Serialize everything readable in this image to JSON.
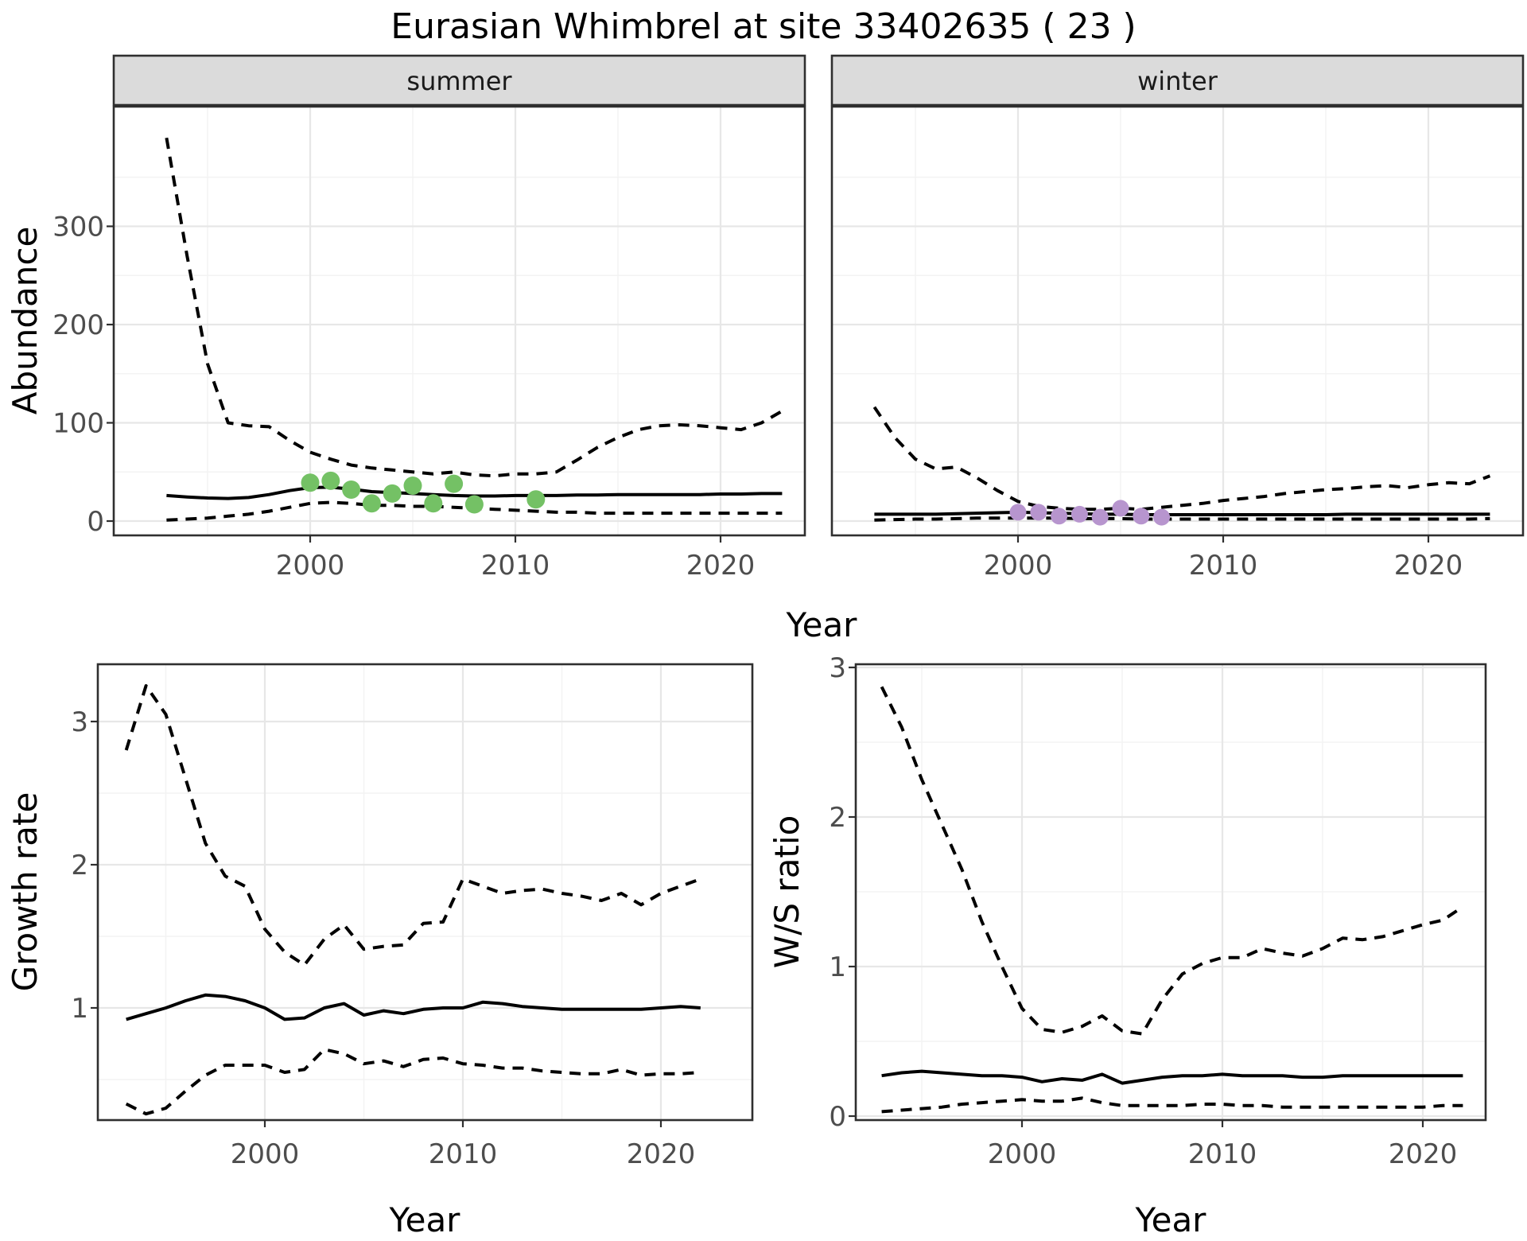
{
  "title": "Eurasian Whimbrel at site 33402635 ( 23 )",
  "colors": {
    "summer_points": "#74C165",
    "winter_points": "#B795CE",
    "line": "#000000",
    "strip_bg": "#DBDBDB",
    "panel_border": "#2F2F2F",
    "grid_major": "#E7E7E7",
    "grid_minor": "#F3F3F3",
    "tick_label": "#4D4D4D",
    "axis_title": "#000000",
    "strip_text": "#1A1A1A"
  },
  "chart_data": [
    {
      "id": "abundance-summer",
      "type": "line",
      "facet_label": "summer",
      "xlabel": "Year",
      "ylabel": "Abundance",
      "x": [
        1993,
        1994,
        1995,
        1996,
        1997,
        1998,
        1999,
        2000,
        2001,
        2002,
        2003,
        2004,
        2005,
        2006,
        2007,
        2008,
        2009,
        2010,
        2011,
        2012,
        2013,
        2014,
        2015,
        2016,
        2017,
        2018,
        2019,
        2020,
        2021,
        2022,
        2023
      ],
      "series": [
        {
          "name": "median",
          "style": "solid",
          "values": [
            26,
            24.5,
            23.5,
            23,
            24,
            27,
            31,
            34,
            34.5,
            32.5,
            30,
            29,
            28,
            27,
            26,
            25.5,
            25.5,
            26,
            26,
            26,
            26.5,
            26.5,
            27,
            27,
            27,
            27,
            27,
            27.5,
            27.5,
            28,
            28
          ]
        },
        {
          "name": "upper-95ci",
          "style": "dashed",
          "values": [
            390,
            270,
            160,
            100,
            97,
            96,
            82,
            70,
            63,
            57,
            54,
            52,
            50,
            48,
            50,
            47,
            46,
            48,
            48,
            50,
            62,
            75,
            85,
            93,
            97,
            98,
            97,
            95,
            93,
            100,
            112
          ]
        },
        {
          "name": "lower-95ci",
          "style": "dashed",
          "values": [
            1,
            2,
            3,
            5,
            7,
            10,
            14,
            18,
            19,
            18,
            16,
            16,
            15,
            15,
            14,
            13,
            12,
            11,
            10,
            9,
            9,
            8,
            8,
            8,
            8,
            8,
            8,
            8,
            8,
            8,
            8
          ]
        }
      ],
      "points": {
        "name": "summer-observations",
        "color_key": "summer_points",
        "data": [
          [
            2000,
            39
          ],
          [
            2001,
            41
          ],
          [
            2002,
            32
          ],
          [
            2003,
            18
          ],
          [
            2004,
            28
          ],
          [
            2005,
            36
          ],
          [
            2006,
            18
          ],
          [
            2007,
            38
          ],
          [
            2008,
            17
          ],
          [
            2011,
            22
          ]
        ]
      },
      "xtick_labels": [
        "2000",
        "2010",
        "2020"
      ],
      "xticks": [
        2000,
        2010,
        2020
      ],
      "ytick_labels": [
        "0",
        "100",
        "200",
        "300"
      ],
      "yticks": [
        0,
        100,
        200,
        300
      ],
      "xlim": [
        1993,
        2023
      ],
      "ylim": [
        -15,
        422
      ],
      "grid": true,
      "legend": "none"
    },
    {
      "id": "abundance-winter",
      "type": "line",
      "facet_label": "winter",
      "xlabel": "Year",
      "ylabel": "Abundance",
      "x": [
        1993,
        1994,
        1995,
        1996,
        1997,
        1998,
        1999,
        2000,
        2001,
        2002,
        2003,
        2004,
        2005,
        2006,
        2007,
        2008,
        2009,
        2010,
        2011,
        2012,
        2013,
        2014,
        2015,
        2016,
        2017,
        2018,
        2019,
        2020,
        2021,
        2022,
        2023
      ],
      "series": [
        {
          "name": "median",
          "style": "solid",
          "values": [
            7,
            7,
            7,
            7,
            7.5,
            8,
            8.5,
            9,
            8.5,
            8,
            7.5,
            7,
            7,
            6.5,
            6.5,
            6.5,
            6.5,
            6.5,
            6.5,
            6.5,
            6.5,
            6.5,
            6.5,
            7,
            7,
            7,
            7,
            7,
            7,
            7,
            7
          ]
        },
        {
          "name": "upper-95ci",
          "style": "dashed",
          "values": [
            116,
            85,
            63,
            53,
            55,
            44,
            31,
            20,
            15,
            13,
            12,
            12,
            13,
            12,
            14,
            16,
            18,
            21,
            23,
            25,
            28,
            30,
            32,
            33,
            35,
            36,
            34,
            37,
            39,
            38,
            46
          ]
        },
        {
          "name": "lower-95ci",
          "style": "dashed",
          "values": [
            1,
            1.5,
            2,
            2,
            2.5,
            3,
            3,
            3,
            3,
            3,
            2.5,
            2.5,
            2.5,
            2,
            2,
            2,
            2,
            2,
            2,
            2,
            2,
            2,
            2,
            2,
            2,
            2,
            2,
            2,
            2,
            2,
            2.5
          ]
        }
      ],
      "points": {
        "name": "winter-observations",
        "color_key": "winter_points",
        "data": [
          [
            2000,
            9
          ],
          [
            2001,
            9
          ],
          [
            2002,
            5
          ],
          [
            2003,
            7
          ],
          [
            2004,
            4
          ],
          [
            2005,
            13
          ],
          [
            2006,
            5
          ],
          [
            2007,
            4
          ]
        ]
      },
      "xtick_labels": [
        "2000",
        "2010",
        "2020"
      ],
      "xticks": [
        2000,
        2010,
        2020
      ],
      "ytick_labels": [],
      "yticks": [],
      "xlim": [
        1993,
        2023
      ],
      "ylim": [
        -15,
        422
      ],
      "grid": true,
      "legend": "none"
    },
    {
      "id": "growth-rate",
      "type": "line",
      "facet_label": "",
      "xlabel": "Year",
      "ylabel": "Growth rate",
      "x": [
        1993,
        1994,
        1995,
        1996,
        1997,
        1998,
        1999,
        2000,
        2001,
        2002,
        2003,
        2004,
        2005,
        2006,
        2007,
        2008,
        2009,
        2010,
        2011,
        2012,
        2013,
        2014,
        2015,
        2016,
        2017,
        2018,
        2019,
        2020,
        2021,
        2022
      ],
      "series": [
        {
          "name": "median",
          "style": "solid",
          "values": [
            0.92,
            0.96,
            1.0,
            1.05,
            1.09,
            1.08,
            1.05,
            1.0,
            0.92,
            0.93,
            1.0,
            1.03,
            0.95,
            0.98,
            0.96,
            0.99,
            1.0,
            1.0,
            1.04,
            1.03,
            1.01,
            1.0,
            0.99,
            0.99,
            0.99,
            0.99,
            0.99,
            1.0,
            1.01,
            1.0
          ]
        },
        {
          "name": "upper-95ci",
          "style": "dashed",
          "values": [
            2.8,
            3.25,
            3.05,
            2.6,
            2.15,
            1.92,
            1.85,
            1.55,
            1.39,
            1.3,
            1.48,
            1.58,
            1.41,
            1.43,
            1.44,
            1.59,
            1.6,
            1.9,
            1.85,
            1.8,
            1.82,
            1.83,
            1.8,
            1.78,
            1.75,
            1.8,
            1.72,
            1.8,
            1.85,
            1.9
          ]
        },
        {
          "name": "lower-95ci",
          "style": "dashed",
          "values": [
            0.33,
            0.26,
            0.3,
            0.42,
            0.53,
            0.6,
            0.6,
            0.6,
            0.55,
            0.57,
            0.71,
            0.68,
            0.61,
            0.63,
            0.59,
            0.64,
            0.65,
            0.61,
            0.6,
            0.58,
            0.58,
            0.56,
            0.55,
            0.54,
            0.54,
            0.57,
            0.53,
            0.54,
            0.54,
            0.55
          ]
        }
      ],
      "points": null,
      "xtick_labels": [
        "2000",
        "2010",
        "2020"
      ],
      "xticks": [
        2000,
        2010,
        2020
      ],
      "ytick_labels": [
        "1",
        "2",
        "3"
      ],
      "yticks": [
        1,
        2,
        3
      ],
      "xlim": [
        1993,
        2022
      ],
      "ylim": [
        0.22,
        3.4
      ],
      "grid": true,
      "legend": "none"
    },
    {
      "id": "ws-ratio",
      "type": "line",
      "facet_label": "",
      "xlabel": "Year",
      "ylabel": "W/S ratio",
      "x": [
        1993,
        1994,
        1995,
        1996,
        1997,
        1998,
        1999,
        2000,
        2001,
        2002,
        2003,
        2004,
        2005,
        2006,
        2007,
        2008,
        2009,
        2010,
        2011,
        2012,
        2013,
        2014,
        2015,
        2016,
        2017,
        2018,
        2019,
        2020,
        2021,
        2022
      ],
      "series": [
        {
          "name": "median",
          "style": "solid",
          "values": [
            0.27,
            0.29,
            0.3,
            0.29,
            0.28,
            0.27,
            0.27,
            0.26,
            0.23,
            0.25,
            0.24,
            0.28,
            0.22,
            0.24,
            0.26,
            0.27,
            0.27,
            0.28,
            0.27,
            0.27,
            0.27,
            0.26,
            0.26,
            0.27,
            0.27,
            0.27,
            0.27,
            0.27,
            0.27,
            0.27
          ]
        },
        {
          "name": "upper-95ci",
          "style": "dashed",
          "values": [
            2.87,
            2.6,
            2.25,
            1.95,
            1.65,
            1.3,
            1.0,
            0.72,
            0.58,
            0.56,
            0.6,
            0.67,
            0.57,
            0.55,
            0.78,
            0.95,
            1.02,
            1.06,
            1.06,
            1.12,
            1.09,
            1.07,
            1.12,
            1.19,
            1.18,
            1.2,
            1.24,
            1.28,
            1.31,
            1.4
          ]
        },
        {
          "name": "lower-95ci",
          "style": "dashed",
          "values": [
            0.03,
            0.04,
            0.05,
            0.06,
            0.08,
            0.09,
            0.1,
            0.11,
            0.1,
            0.1,
            0.12,
            0.09,
            0.07,
            0.07,
            0.07,
            0.07,
            0.08,
            0.08,
            0.07,
            0.07,
            0.06,
            0.06,
            0.06,
            0.06,
            0.06,
            0.06,
            0.06,
            0.06,
            0.07,
            0.07
          ]
        }
      ],
      "points": null,
      "xtick_labels": [
        "2000",
        "2010",
        "2020"
      ],
      "xticks": [
        2000,
        2010,
        2020
      ],
      "ytick_labels": [
        "0",
        "1",
        "2",
        "3"
      ],
      "yticks": [
        0,
        1,
        2,
        3
      ],
      "xlim": [
        1993,
        2022
      ],
      "ylim": [
        -0.03,
        3.02
      ],
      "grid": true,
      "legend": "none"
    }
  ]
}
